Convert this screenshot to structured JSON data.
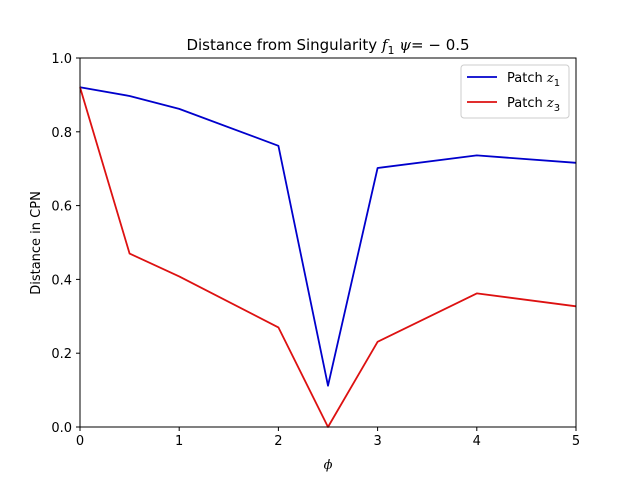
{
  "chart_data": {
    "type": "line",
    "title": {
      "prefix": "Distance from Singularity ",
      "f_symbol": "f",
      "f_sub": "1",
      "psi_symbol": " ψ",
      "suffix": "= − 0.5"
    },
    "xlabel": "ϕ",
    "ylabel": "Distance in CPN",
    "xlim": [
      0,
      5
    ],
    "ylim": [
      0,
      1
    ],
    "xticks": [
      0,
      1,
      2,
      3,
      4,
      5
    ],
    "xtick_labels": [
      "0",
      "1",
      "2",
      "3",
      "4",
      "5"
    ],
    "yticks": [
      0,
      0.2,
      0.4,
      0.6,
      0.8,
      1.0
    ],
    "ytick_labels": [
      "0.0",
      "0.2",
      "0.4",
      "0.6",
      "0.8",
      "1.0"
    ],
    "grid": false,
    "legend_position": "top-right",
    "series": [
      {
        "name": "Patch z1",
        "legend_prefix": "Patch ",
        "legend_symbol": "z",
        "legend_sub": "1",
        "color": "#0000cc",
        "x": [
          0,
          0.5,
          1,
          2,
          2.5,
          3,
          4,
          5
        ],
        "y": [
          0.921,
          0.897,
          0.862,
          0.762,
          0.112,
          0.702,
          0.736,
          0.716
        ]
      },
      {
        "name": "Patch z3",
        "legend_prefix": "Patch ",
        "legend_symbol": "z",
        "legend_sub": "3",
        "color": "#dd1111",
        "x": [
          0,
          0.5,
          1,
          2,
          2.5,
          3,
          4,
          5
        ],
        "y": [
          0.921,
          0.47,
          0.408,
          0.27,
          0.0,
          0.231,
          0.362,
          0.327
        ]
      }
    ]
  }
}
